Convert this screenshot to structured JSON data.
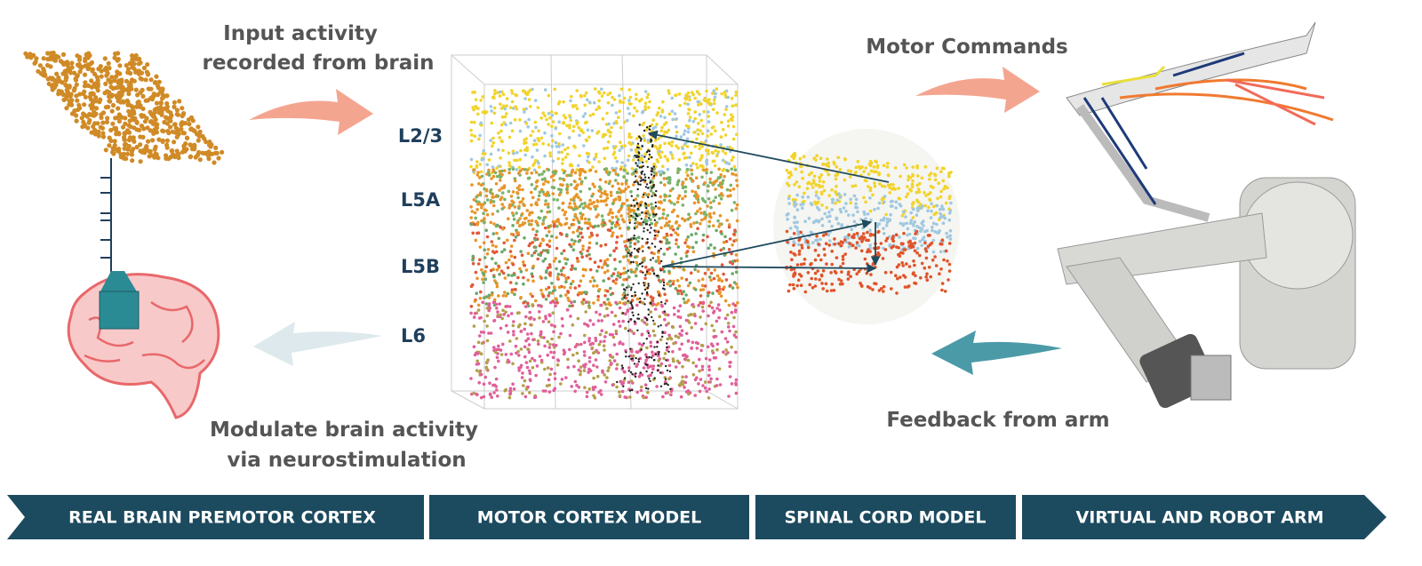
{
  "top_left_label": [
    "Input activity",
    "recorded from brain"
  ],
  "bottom_left_label": [
    "Modulate brain activity",
    "via neurostimulation"
  ],
  "top_right_label": "Motor Commands",
  "bottom_right_label": "Feedback from arm",
  "layers": [
    "L2/3",
    "L5A",
    "L5B",
    "L6"
  ],
  "banner": [
    "REAL BRAIN PREMOTOR CORTEX",
    "MOTOR CORTEX MODEL",
    "SPINAL CORD MODEL",
    "VIRTUAL AND ROBOT ARM"
  ]
}
